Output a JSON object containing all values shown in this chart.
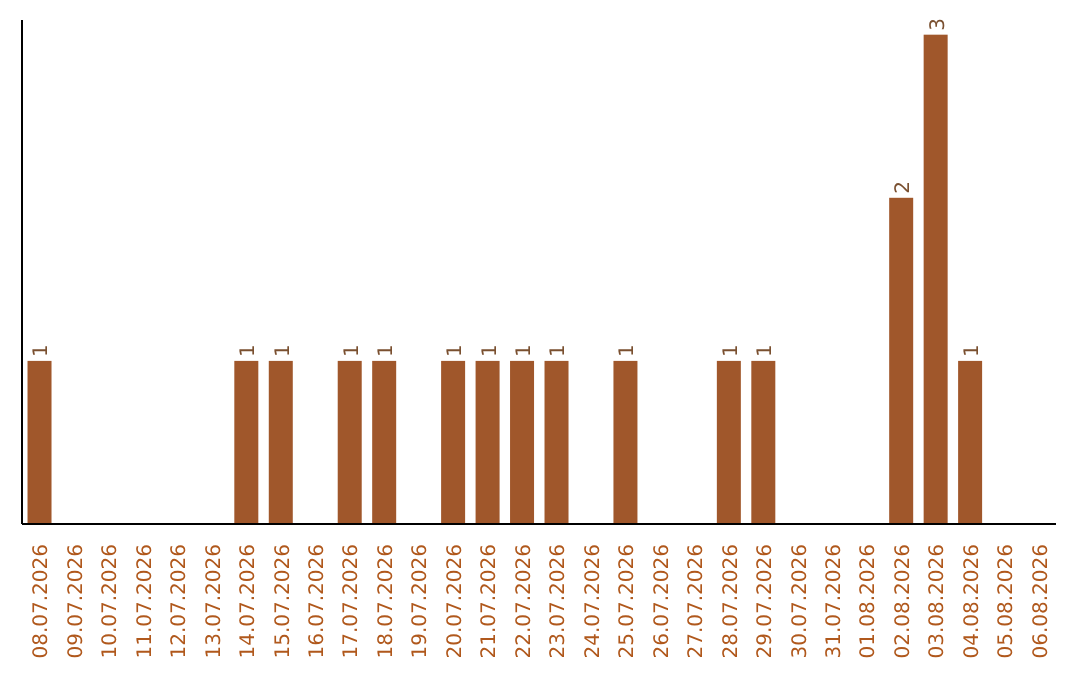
{
  "chart_data": {
    "type": "bar",
    "categories": [
      "08.07.2026",
      "09.07.2026",
      "10.07.2026",
      "11.07.2026",
      "12.07.2026",
      "13.07.2026",
      "14.07.2026",
      "15.07.2026",
      "16.07.2026",
      "17.07.2026",
      "18.07.2026",
      "19.07.2026",
      "20.07.2026",
      "21.07.2026",
      "22.07.2026",
      "23.07.2026",
      "24.07.2026",
      "25.07.2026",
      "26.07.2026",
      "27.07.2026",
      "28.07.2026",
      "29.07.2026",
      "30.07.2026",
      "31.07.2026",
      "01.08.2026",
      "02.08.2026",
      "03.08.2026",
      "04.08.2026",
      "05.08.2026",
      "06.08.2026"
    ],
    "values": [
      1,
      0,
      0,
      0,
      0,
      0,
      1,
      1,
      0,
      1,
      1,
      0,
      1,
      1,
      1,
      1,
      0,
      1,
      0,
      0,
      1,
      1,
      0,
      0,
      0,
      2,
      3,
      1,
      0,
      0
    ],
    "value_labels": [
      "1",
      null,
      null,
      null,
      null,
      null,
      "1",
      "1",
      null,
      "1",
      "1",
      null,
      "1",
      "1",
      "1",
      "1",
      null,
      "1",
      null,
      null,
      "1",
      "1",
      null,
      null,
      null,
      "2",
      "3",
      "1",
      null,
      null
    ],
    "color": "#a0572b",
    "tick_labels": "x",
    "grid": false,
    "legend": false
  }
}
